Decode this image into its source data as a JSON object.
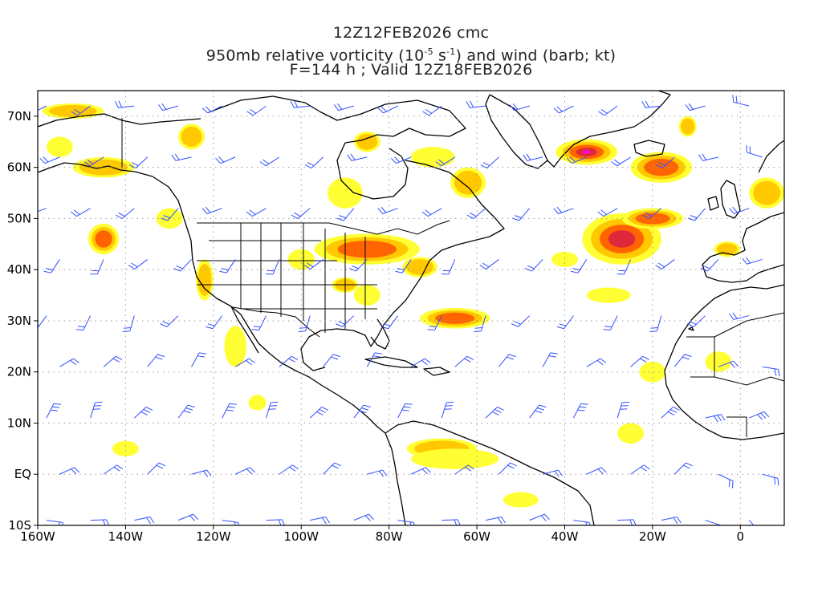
{
  "header": {
    "line1": "12Z12FEB2026 cmc",
    "line2_prefix": "950mb relative vorticity (10",
    "line2_exp1": "-5",
    "line2_mid": " s",
    "line2_exp2": "-1",
    "line2_suffix": ") and wind (barb; kt)",
    "line3": "F=144 h ; Valid 12Z18FEB2026"
  },
  "map": {
    "lon_range": [
      -160,
      10
    ],
    "lat_range": [
      -10,
      75
    ],
    "x_ticks": [
      {
        "lon": -160,
        "label": "160W"
      },
      {
        "lon": -140,
        "label": "140W"
      },
      {
        "lon": -120,
        "label": "120W"
      },
      {
        "lon": -100,
        "label": "100W"
      },
      {
        "lon": -80,
        "label": "80W"
      },
      {
        "lon": -60,
        "label": "60W"
      },
      {
        "lon": -40,
        "label": "40W"
      },
      {
        "lon": -20,
        "label": "20W"
      },
      {
        "lon": 0,
        "label": "0"
      }
    ],
    "y_ticks": [
      {
        "lat": 70,
        "label": "70N"
      },
      {
        "lat": 60,
        "label": "60N"
      },
      {
        "lat": 50,
        "label": "50N"
      },
      {
        "lat": 40,
        "label": "40N"
      },
      {
        "lat": 30,
        "label": "30N"
      },
      {
        "lat": 20,
        "label": "20N"
      },
      {
        "lat": 10,
        "label": "10N"
      },
      {
        "lat": 0,
        "label": "EQ"
      },
      {
        "lat": -10,
        "label": "10S"
      }
    ],
    "colors": {
      "low": "#ffff33",
      "mid": "#ffc800",
      "high": "#ff6400",
      "higher": "#e0283c",
      "max": "#ff00ff",
      "barb": "#3050ff",
      "coast": "#000000",
      "grid": "#9a9a9a"
    },
    "vorticity_areas": [
      {
        "lon": -35,
        "lat": 63,
        "rx": 7,
        "ry": 2.5,
        "level": 5
      },
      {
        "lon": -27,
        "lat": 46,
        "rx": 9,
        "ry": 5,
        "level": 4
      },
      {
        "lon": -20,
        "lat": 50,
        "rx": 7,
        "ry": 2,
        "level": 3
      },
      {
        "lon": -18,
        "lat": 60,
        "rx": 7,
        "ry": 3,
        "level": 3
      },
      {
        "lon": -65,
        "lat": 30.5,
        "rx": 8,
        "ry": 2,
        "level": 3
      },
      {
        "lon": -85,
        "lat": 44,
        "rx": 12,
        "ry": 3,
        "level": 3
      },
      {
        "lon": -73,
        "lat": 40.5,
        "rx": 4,
        "ry": 2,
        "level": 2
      },
      {
        "lon": -145,
        "lat": 46,
        "rx": 3.5,
        "ry": 3,
        "level": 3
      },
      {
        "lon": -145,
        "lat": 60,
        "rx": 7,
        "ry": 2,
        "level": 2
      },
      {
        "lon": -152,
        "lat": 71,
        "rx": 7,
        "ry": 1.5,
        "level": 2
      },
      {
        "lon": -125,
        "lat": 66,
        "rx": 3,
        "ry": 2.5,
        "level": 2
      },
      {
        "lon": -85,
        "lat": 65,
        "rx": 3,
        "ry": 2,
        "level": 2
      },
      {
        "lon": -62,
        "lat": 57,
        "rx": 4,
        "ry": 3,
        "level": 2
      },
      {
        "lon": -90,
        "lat": 37,
        "rx": 3,
        "ry": 1.5,
        "level": 2
      },
      {
        "lon": -122,
        "lat": 38,
        "rx": 2,
        "ry": 4,
        "level": 2
      },
      {
        "lon": -115,
        "lat": 25,
        "rx": 2.5,
        "ry": 4,
        "level": 1
      },
      {
        "lon": -68,
        "lat": 5,
        "rx": 8,
        "ry": 2,
        "level": 2
      },
      {
        "lon": 6,
        "lat": 55,
        "rx": 4,
        "ry": 3,
        "level": 2
      },
      {
        "lon": -3,
        "lat": 44,
        "rx": 3,
        "ry": 1.5,
        "level": 2
      },
      {
        "lon": -12,
        "lat": 68,
        "rx": 2,
        "ry": 2,
        "level": 2
      },
      {
        "lon": -40,
        "lat": 42,
        "rx": 3,
        "ry": 1.5,
        "level": 1
      },
      {
        "lon": -30,
        "lat": 35,
        "rx": 5,
        "ry": 1.5,
        "level": 1
      },
      {
        "lon": -65,
        "lat": 3,
        "rx": 10,
        "ry": 2,
        "level": 1
      },
      {
        "lon": -50,
        "lat": -5,
        "rx": 4,
        "ry": 1.5,
        "level": 1
      },
      {
        "lon": -25,
        "lat": 8,
        "rx": 3,
        "ry": 2,
        "level": 1
      },
      {
        "lon": -140,
        "lat": 5,
        "rx": 3,
        "ry": 1.5,
        "level": 1
      },
      {
        "lon": -110,
        "lat": 14,
        "rx": 2,
        "ry": 1.5,
        "level": 1
      },
      {
        "lon": -100,
        "lat": 42,
        "rx": 3,
        "ry": 2,
        "level": 1
      },
      {
        "lon": -90,
        "lat": 55,
        "rx": 4,
        "ry": 3,
        "level": 1
      },
      {
        "lon": -70,
        "lat": 62,
        "rx": 5,
        "ry": 2,
        "level": 1
      },
      {
        "lon": -130,
        "lat": 50,
        "rx": 3,
        "ry": 2,
        "level": 1
      },
      {
        "lon": -155,
        "lat": 64,
        "rx": 3,
        "ry": 2,
        "level": 1
      },
      {
        "lon": -20,
        "lat": 20,
        "rx": 3,
        "ry": 2,
        "level": 1
      },
      {
        "lon": -5,
        "lat": 22,
        "rx": 3,
        "ry": 2,
        "level": 1
      },
      {
        "lon": -85,
        "lat": 35,
        "rx": 3,
        "ry": 2,
        "level": 1
      }
    ],
    "barb_rows": [
      {
        "lat": 72,
        "dir": 290,
        "speed": 15
      },
      {
        "lat": 62,
        "dir": 280,
        "speed": 15
      },
      {
        "lat": 52,
        "dir": 270,
        "speed": 20
      },
      {
        "lat": 42,
        "dir": 260,
        "speed": 15
      },
      {
        "lat": 31,
        "dir": 250,
        "speed": 20
      },
      {
        "lat": 21,
        "dir": 80,
        "speed": 20
      },
      {
        "lat": 11,
        "dir": 75,
        "speed": 25
      },
      {
        "lat": 0,
        "dir": 100,
        "speed": 15
      },
      {
        "lat": -9,
        "dir": 120,
        "speed": 15
      }
    ]
  }
}
